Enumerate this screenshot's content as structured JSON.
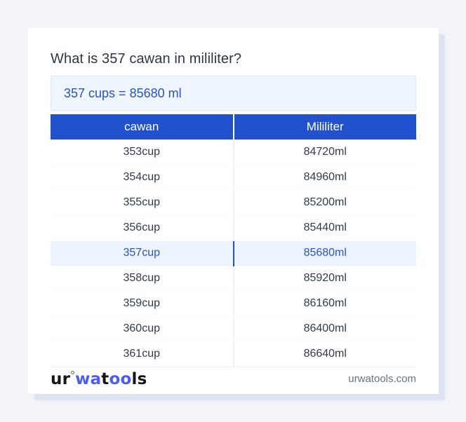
{
  "page": {
    "title": "What is 357 cawan in mililiter?",
    "result": "357 cups = 85680 ml"
  },
  "table": {
    "headers": [
      "cawan",
      "Mililiter"
    ],
    "rows": [
      {
        "cawan": "353cup",
        "ml": "84720ml",
        "highlighted": false
      },
      {
        "cawan": "354cup",
        "ml": "84960ml",
        "highlighted": false
      },
      {
        "cawan": "355cup",
        "ml": "85200ml",
        "highlighted": false
      },
      {
        "cawan": "356cup",
        "ml": "85440ml",
        "highlighted": false
      },
      {
        "cawan": "357cup",
        "ml": "85680ml",
        "highlighted": true
      },
      {
        "cawan": "358cup",
        "ml": "85920ml",
        "highlighted": false
      },
      {
        "cawan": "359cup",
        "ml": "86160ml",
        "highlighted": false
      },
      {
        "cawan": "360cup",
        "ml": "86400ml",
        "highlighted": false
      },
      {
        "cawan": "361cup",
        "ml": "86640ml",
        "highlighted": false
      }
    ]
  },
  "footer": {
    "logo": {
      "part_ur": "ur",
      "part_wa": "wa",
      "part_t": "t",
      "part_oo": "oo",
      "part_ls": "ls"
    },
    "site": "urwatools.com"
  },
  "colors": {
    "header_blue": "#2151cc",
    "accent_blue": "#2a53c4",
    "highlight_bg": "#edf4fe",
    "result_bg": "#eff6ff",
    "logo_blue": "#4b5cf5",
    "page_bg": "#f2f4f9"
  }
}
